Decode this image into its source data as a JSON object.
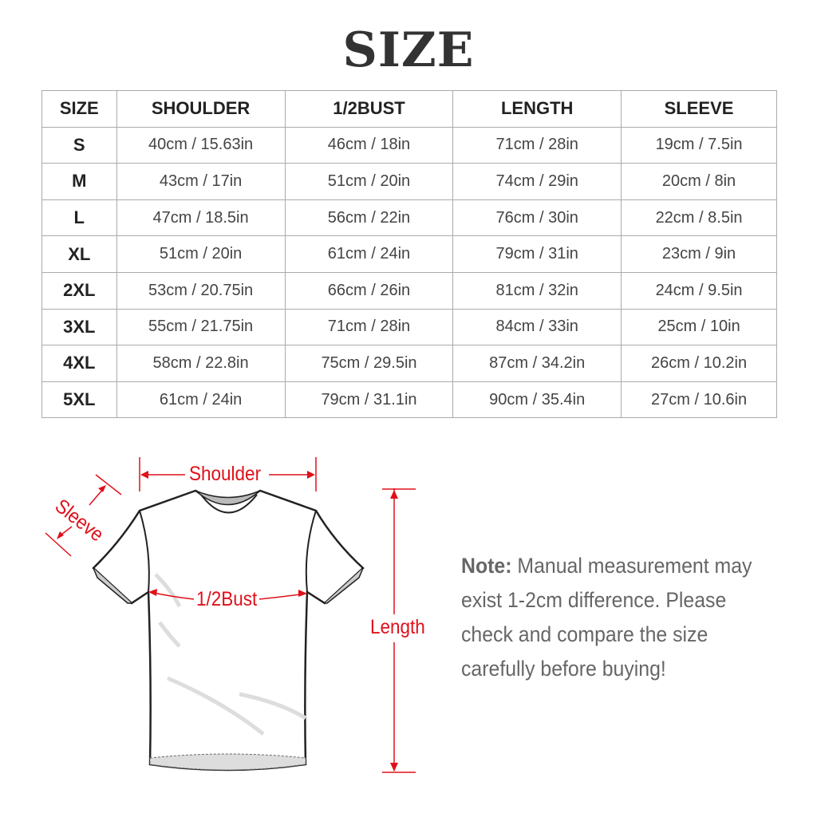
{
  "title": "SIZE",
  "table": {
    "headers": [
      "SIZE",
      "SHOULDER",
      "1/2BUST",
      "LENGTH",
      "SLEEVE"
    ],
    "rows": [
      [
        "S",
        "40cm / 15.63in",
        "46cm / 18in",
        "71cm / 28in",
        "19cm / 7.5in"
      ],
      [
        "M",
        "43cm / 17in",
        "51cm / 20in",
        "74cm / 29in",
        "20cm / 8in"
      ],
      [
        "L",
        "47cm / 18.5in",
        "56cm / 22in",
        "76cm / 30in",
        "22cm / 8.5in"
      ],
      [
        "XL",
        "51cm / 20in",
        "61cm / 24in",
        "79cm / 31in",
        "23cm / 9in"
      ],
      [
        "2XL",
        "53cm / 20.75in",
        "66cm / 26in",
        "81cm / 32in",
        "24cm / 9.5in"
      ],
      [
        "3XL",
        "55cm / 21.75in",
        "71cm / 28in",
        "84cm / 33in",
        "25cm / 10in"
      ],
      [
        "4XL",
        "58cm / 22.8in",
        "75cm / 29.5in",
        "87cm / 34.2in",
        "26cm / 10.2in"
      ],
      [
        "5XL",
        "61cm / 24in",
        "79cm / 31.1in",
        "90cm / 35.4in",
        "27cm / 10.6in"
      ]
    ]
  },
  "diagram": {
    "shoulder_label": "Shoulder",
    "sleeve_label": "Sleeve",
    "bust_label": "1/2Bust",
    "length_label": "Length",
    "accent_color": "#e0101a"
  },
  "note": {
    "label": "Note:",
    "text": "Manual measurement may exist 1-2cm difference. Please check and compare the size carefully before buying!"
  }
}
